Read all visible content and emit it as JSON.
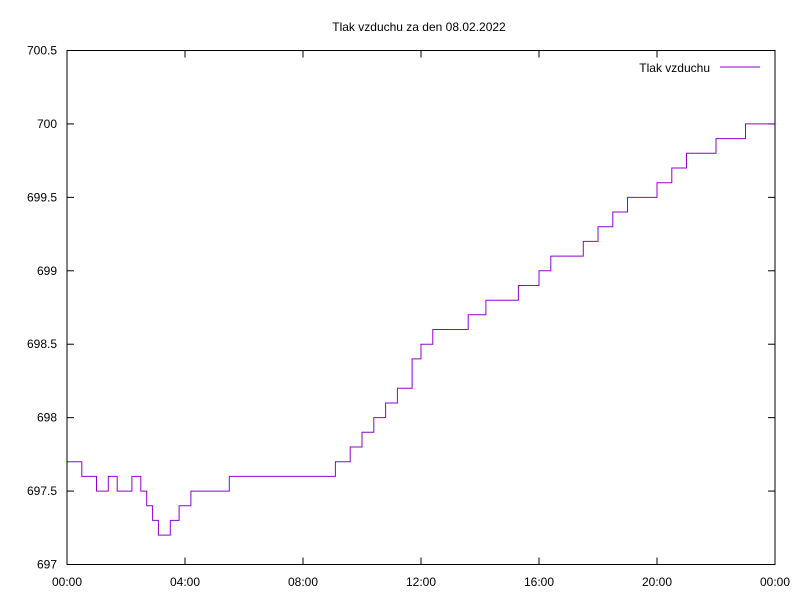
{
  "chart_data": {
    "type": "line",
    "title": "Tlak vzduchu za den 08.02.2022",
    "xlabel": "",
    "ylabel": "",
    "x_ticks": [
      "00:00",
      "04:00",
      "08:00",
      "12:00",
      "16:00",
      "20:00",
      "00:00"
    ],
    "y_ticks": [
      "697",
      "697.5",
      "698",
      "698.5",
      "699",
      "699.5",
      "700",
      "700.5"
    ],
    "xlim_hours": [
      0,
      24
    ],
    "ylim": [
      697,
      700.5
    ],
    "grid": false,
    "legend_position": "top-right",
    "series": [
      {
        "name": "Tlak vzduchu",
        "color": "#9400d3",
        "points": [
          [
            0.0,
            697.7
          ],
          [
            0.2,
            697.7
          ],
          [
            0.5,
            697.6
          ],
          [
            0.8,
            697.6
          ],
          [
            1.0,
            697.5
          ],
          [
            1.4,
            697.6
          ],
          [
            1.7,
            697.5
          ],
          [
            2.2,
            697.6
          ],
          [
            2.5,
            697.5
          ],
          [
            2.7,
            697.4
          ],
          [
            2.9,
            697.3
          ],
          [
            3.1,
            697.2
          ],
          [
            3.5,
            697.3
          ],
          [
            3.8,
            697.4
          ],
          [
            4.2,
            697.5
          ],
          [
            4.8,
            697.5
          ],
          [
            5.5,
            697.6
          ],
          [
            6.5,
            697.6
          ],
          [
            7.3,
            697.6
          ],
          [
            8.0,
            697.6
          ],
          [
            8.9,
            697.6
          ],
          [
            9.1,
            697.7
          ],
          [
            9.4,
            697.7
          ],
          [
            9.6,
            697.8
          ],
          [
            10.0,
            697.9
          ],
          [
            10.4,
            698.0
          ],
          [
            10.8,
            698.1
          ],
          [
            11.2,
            698.2
          ],
          [
            11.7,
            698.4
          ],
          [
            12.0,
            698.5
          ],
          [
            12.4,
            698.6
          ],
          [
            13.0,
            698.6
          ],
          [
            13.6,
            698.7
          ],
          [
            14.2,
            698.8
          ],
          [
            14.8,
            698.8
          ],
          [
            15.3,
            698.9
          ],
          [
            16.0,
            699.0
          ],
          [
            16.4,
            699.1
          ],
          [
            17.0,
            699.1
          ],
          [
            17.5,
            699.2
          ],
          [
            18.0,
            699.3
          ],
          [
            18.5,
            699.4
          ],
          [
            19.0,
            699.5
          ],
          [
            19.5,
            699.5
          ],
          [
            20.0,
            699.6
          ],
          [
            20.5,
            699.7
          ],
          [
            21.0,
            699.8
          ],
          [
            21.5,
            699.8
          ],
          [
            22.0,
            699.9
          ],
          [
            22.5,
            699.9
          ],
          [
            23.0,
            700.0
          ],
          [
            23.5,
            700.0
          ],
          [
            24.0,
            700.1
          ]
        ]
      }
    ]
  }
}
